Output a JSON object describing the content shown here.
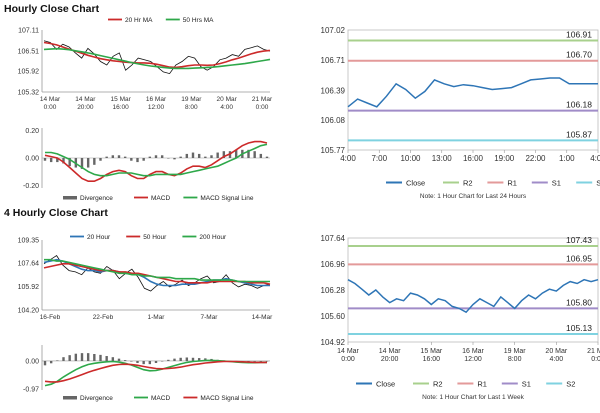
{
  "section_titles": {
    "hourly": "Hourly Close Chart",
    "four_hourly": "4 Hourly Close Chart"
  },
  "chart_data": [
    {
      "id": "hourly_price",
      "type": "line",
      "legend": [
        "20 Hr MA",
        "50 Hrs MA"
      ],
      "y_ticks": [
        "107.11",
        "106.51",
        "105.92",
        "105.32"
      ],
      "y_tick_values": [
        107.11,
        106.51,
        105.92,
        105.32
      ],
      "ylim": [
        105.32,
        107.11
      ],
      "x_ticks": [
        [
          "14 Mar",
          "0:00"
        ],
        [
          "14 Mar",
          "20:00"
        ],
        [
          "15 Mar",
          "16:00"
        ],
        [
          "16 Mar",
          "12:00"
        ],
        [
          "19 Mar",
          "8:00"
        ],
        [
          "20 Mar",
          "4:00"
        ],
        [
          "21 Mar",
          "0:00"
        ]
      ],
      "series": [
        {
          "name": "Close",
          "color": "#111111",
          "values": [
            106.8,
            106.75,
            106.55,
            106.7,
            106.62,
            106.45,
            106.3,
            106.58,
            106.42,
            106.2,
            106.1,
            106.35,
            106.45,
            105.95,
            106.1,
            106.3,
            106.25,
            106.2,
            106.05,
            105.9,
            105.85,
            106.1,
            106.2,
            106.35,
            106.3,
            106.05,
            105.95,
            106.05,
            106.25,
            106.3,
            106.4,
            106.35,
            106.55,
            106.6,
            106.65,
            106.55,
            106.5
          ]
        },
        {
          "name": "20 Hr MA",
          "color": "#cc2a2a",
          "values": [
            106.75,
            106.72,
            106.68,
            106.62,
            106.56,
            106.5,
            106.44,
            106.38,
            106.33,
            106.28,
            106.25,
            106.22,
            106.2,
            106.18,
            106.17,
            106.16,
            106.16,
            106.15,
            106.12,
            106.08,
            106.04,
            106.03,
            106.05,
            106.08,
            106.1,
            106.1,
            106.09,
            106.1,
            106.14,
            106.19,
            106.25,
            106.3,
            106.36,
            106.42,
            106.47,
            106.5,
            106.52
          ]
        },
        {
          "name": "50 Hrs MA",
          "color": "#2ea84a",
          "values": [
            106.55,
            106.56,
            106.57,
            106.56,
            106.54,
            106.51,
            106.48,
            106.45,
            106.41,
            106.37,
            106.33,
            106.29,
            106.25,
            106.21,
            106.17,
            106.13,
            106.1,
            106.07,
            106.05,
            106.03,
            106.01,
            106.0,
            106.0,
            106.0,
            106.01,
            106.02,
            106.03,
            106.04,
            106.06,
            106.08,
            106.1,
            106.12,
            106.14,
            106.17,
            106.2,
            106.23,
            106.26
          ]
        }
      ]
    },
    {
      "id": "hourly_macd",
      "type": "line",
      "legend": [
        "Divergence",
        "MACD",
        "MACD Signal Line"
      ],
      "y_ticks": [
        "0.20",
        "0.00",
        "-0.20"
      ],
      "y_tick_values": [
        0.2,
        0.0,
        -0.2
      ],
      "ylim": [
        -0.22,
        0.22
      ],
      "series": [
        {
          "name": "MACD",
          "color": "#cc2a2a",
          "values": [
            0.02,
            0.01,
            0.0,
            -0.03,
            -0.07,
            -0.11,
            -0.15,
            -0.17,
            -0.17,
            -0.15,
            -0.12,
            -0.1,
            -0.09,
            -0.1,
            -0.13,
            -0.15,
            -0.15,
            -0.12,
            -0.1,
            -0.1,
            -0.12,
            -0.13,
            -0.11,
            -0.08,
            -0.06,
            -0.06,
            -0.07,
            -0.05,
            -0.02,
            0.01,
            0.03,
            0.06,
            0.09,
            0.11,
            0.12,
            0.12,
            0.11
          ]
        },
        {
          "name": "MACD Signal Line",
          "color": "#2ea84a",
          "values": [
            0.04,
            0.04,
            0.03,
            0.01,
            -0.01,
            -0.04,
            -0.07,
            -0.1,
            -0.12,
            -0.13,
            -0.13,
            -0.12,
            -0.11,
            -0.11,
            -0.11,
            -0.12,
            -0.13,
            -0.13,
            -0.12,
            -0.12,
            -0.12,
            -0.12,
            -0.12,
            -0.11,
            -0.1,
            -0.09,
            -0.08,
            -0.07,
            -0.06,
            -0.04,
            -0.02,
            0.0,
            0.03,
            0.05,
            0.07,
            0.09,
            0.1
          ]
        },
        {
          "name": "Divergence",
          "color": "#555555",
          "values": [
            -0.02,
            -0.03,
            -0.03,
            -0.04,
            -0.06,
            -0.07,
            -0.08,
            -0.07,
            -0.05,
            -0.02,
            0.01,
            0.02,
            0.02,
            0.01,
            -0.02,
            -0.03,
            -0.02,
            0.01,
            0.02,
            0.02,
            0.0,
            -0.01,
            0.01,
            0.03,
            0.04,
            0.03,
            0.01,
            0.02,
            0.04,
            0.05,
            0.05,
            0.06,
            0.06,
            0.06,
            0.05,
            0.03,
            0.01
          ]
        }
      ]
    },
    {
      "id": "hourly_24h",
      "type": "line",
      "y_ticks": [
        "107.02",
        "106.71",
        "106.39",
        "106.08",
        "105.77"
      ],
      "y_tick_values": [
        107.02,
        106.71,
        106.39,
        106.08,
        105.77
      ],
      "ylim": [
        105.77,
        107.02
      ],
      "x_ticks": [
        "4:00",
        "7:00",
        "10:00",
        "13:00",
        "16:00",
        "19:00",
        "22:00",
        "1:00",
        "4:00"
      ],
      "legend": [
        "Close",
        "R2",
        "R1",
        "S1",
        "S2"
      ],
      "levels": [
        {
          "name": "R2",
          "value": 106.91,
          "label": "106.91",
          "color": "#a8d08d"
        },
        {
          "name": "R1",
          "value": 106.7,
          "label": "106.70",
          "color": "#e39a9a"
        },
        {
          "name": "S1",
          "value": 106.18,
          "label": "106.18",
          "color": "#a08cc8"
        },
        {
          "name": "S2",
          "value": 105.87,
          "label": "105.87",
          "color": "#7fd2e0"
        }
      ],
      "series": [
        {
          "name": "Close",
          "color": "#2e75b6",
          "values": [
            106.22,
            106.3,
            106.26,
            106.22,
            106.33,
            106.46,
            106.4,
            106.31,
            106.38,
            106.5,
            106.46,
            106.43,
            106.45,
            106.44,
            106.42,
            106.4,
            106.41,
            106.42,
            106.46,
            106.5,
            106.51,
            106.52,
            106.52,
            106.46,
            106.46,
            106.46,
            106.46
          ]
        }
      ],
      "note": "Note: 1 Hour Chart for Last 24 Hours"
    },
    {
      "id": "four_hourly_price",
      "type": "line",
      "legend": [
        "20 Hour",
        "50 Hour",
        "200 Hour"
      ],
      "y_ticks": [
        "109.35",
        "107.64",
        "105.92",
        "104.20"
      ],
      "y_tick_values": [
        109.35,
        107.64,
        105.92,
        104.2
      ],
      "ylim": [
        104.2,
        109.35
      ],
      "x_ticks": [
        "16-Feb",
        "22-Feb",
        "1-Mar",
        "7-Mar",
        "14-Mar"
      ],
      "series": [
        {
          "name": "Close",
          "color": "#111111",
          "values": [
            107.6,
            107.9,
            108.2,
            107.5,
            107.1,
            107.0,
            106.8,
            107.3,
            107.0,
            106.9,
            107.4,
            107.1,
            106.5,
            106.9,
            107.2,
            106.6,
            105.8,
            105.6,
            106.0,
            106.3,
            105.9,
            106.1,
            106.4,
            106.0,
            106.2,
            106.5,
            106.7,
            106.2,
            106.3,
            106.8,
            106.2,
            105.9,
            106.1,
            106.0,
            105.8,
            106.0,
            106.1
          ]
        },
        {
          "name": "20 Hour",
          "color": "#2e75b6",
          "values": [
            107.7,
            107.8,
            107.9,
            107.8,
            107.6,
            107.4,
            107.2,
            107.1,
            107.1,
            107.0,
            107.1,
            107.1,
            107.0,
            106.9,
            106.9,
            106.8,
            106.6,
            106.3,
            106.1,
            106.0,
            106.0,
            106.0,
            106.1,
            106.1,
            106.1,
            106.2,
            106.3,
            106.4,
            106.4,
            106.5,
            106.4,
            106.3,
            106.2,
            106.1,
            106.0,
            106.0,
            106.0
          ]
        },
        {
          "name": "50 Hour",
          "color": "#cc2a2a",
          "values": [
            107.3,
            107.4,
            107.5,
            107.6,
            107.6,
            107.5,
            107.4,
            107.3,
            107.2,
            107.1,
            107.1,
            107.1,
            107.0,
            107.0,
            106.9,
            106.9,
            106.8,
            106.7,
            106.6,
            106.5,
            106.4,
            106.3,
            106.3,
            106.2,
            106.2,
            106.2,
            106.2,
            106.3,
            106.3,
            106.3,
            106.3,
            106.3,
            106.3,
            106.2,
            106.2,
            106.2,
            106.1
          ]
        },
        {
          "name": "200 Hour",
          "color": "#2ea84a",
          "values": [
            107.9,
            107.9,
            107.8,
            107.8,
            107.7,
            107.6,
            107.5,
            107.4,
            107.3,
            107.2,
            107.1,
            107.0,
            106.9,
            106.9,
            106.8,
            106.8,
            106.7,
            106.7,
            106.6,
            106.6,
            106.6,
            106.5,
            106.5,
            106.5,
            106.5,
            106.4,
            106.4,
            106.4,
            106.4,
            106.4,
            106.4,
            106.3,
            106.3,
            106.3,
            106.3,
            106.3,
            106.3
          ]
        }
      ]
    },
    {
      "id": "four_hourly_macd",
      "type": "line",
      "legend": [
        "Divergence",
        "MACD",
        "MACD Signal Line"
      ],
      "y_ticks": [
        "0.00",
        "-0.97"
      ],
      "y_tick_values": [
        0.0,
        -0.97
      ],
      "ylim": [
        -1.0,
        0.55
      ],
      "series": [
        {
          "name": "MACD",
          "color": "#2ea84a",
          "values": [
            -0.85,
            -0.8,
            -0.7,
            -0.55,
            -0.42,
            -0.3,
            -0.2,
            -0.12,
            -0.08,
            -0.05,
            -0.03,
            -0.02,
            -0.04,
            -0.08,
            -0.14,
            -0.22,
            -0.3,
            -0.34,
            -0.33,
            -0.28,
            -0.22,
            -0.16,
            -0.1,
            -0.05,
            -0.02,
            0.0,
            0.02,
            0.02,
            0.01,
            0.0,
            -0.02,
            -0.04,
            -0.05,
            -0.06,
            -0.06,
            -0.05,
            -0.05
          ]
        },
        {
          "name": "MACD Signal Line",
          "color": "#cc2a2a",
          "values": [
            -0.7,
            -0.72,
            -0.72,
            -0.68,
            -0.62,
            -0.55,
            -0.47,
            -0.39,
            -0.32,
            -0.26,
            -0.2,
            -0.15,
            -0.12,
            -0.11,
            -0.12,
            -0.15,
            -0.19,
            -0.23,
            -0.26,
            -0.27,
            -0.26,
            -0.24,
            -0.21,
            -0.17,
            -0.13,
            -0.1,
            -0.07,
            -0.05,
            -0.03,
            -0.02,
            -0.02,
            -0.02,
            -0.03,
            -0.04,
            -0.05,
            -0.05,
            -0.05
          ]
        },
        {
          "name": "Divergence",
          "color": "#555555",
          "values": [
            -0.15,
            -0.08,
            0.02,
            0.13,
            0.2,
            0.25,
            0.27,
            0.27,
            0.24,
            0.21,
            0.17,
            0.13,
            0.08,
            0.03,
            -0.02,
            -0.07,
            -0.11,
            -0.11,
            -0.07,
            -0.01,
            0.04,
            0.08,
            0.11,
            0.12,
            0.11,
            0.1,
            0.09,
            0.07,
            0.04,
            0.02,
            0.0,
            -0.02,
            -0.02,
            -0.02,
            -0.01,
            0.0,
            0.0
          ]
        }
      ]
    },
    {
      "id": "weekly_1h",
      "type": "line",
      "y_ticks": [
        "107.64",
        "106.96",
        "106.28",
        "105.60",
        "104.92"
      ],
      "y_tick_values": [
        107.64,
        106.96,
        106.28,
        105.6,
        104.92
      ],
      "ylim": [
        104.92,
        107.64
      ],
      "x_ticks": [
        [
          "14 Mar",
          "0:00"
        ],
        [
          "14 Mar",
          "20:00"
        ],
        [
          "15 Mar",
          "16:00"
        ],
        [
          "16 Mar",
          "12:00"
        ],
        [
          "19 Mar",
          "8:00"
        ],
        [
          "20 Mar",
          "4:00"
        ],
        [
          "21 Mar",
          "0:00"
        ]
      ],
      "legend": [
        "Close",
        "R2",
        "R1",
        "S1",
        "S2"
      ],
      "levels": [
        {
          "name": "R2",
          "value": 107.43,
          "label": "107.43",
          "color": "#a8d08d"
        },
        {
          "name": "R1",
          "value": 106.95,
          "label": "106.95",
          "color": "#e39a9a"
        },
        {
          "name": "S1",
          "value": 105.8,
          "label": "105.80",
          "color": "#a08cc8"
        },
        {
          "name": "S2",
          "value": 105.13,
          "label": "105.13",
          "color": "#7fd2e0"
        }
      ],
      "series": [
        {
          "name": "Close",
          "color": "#2e75b6",
          "values": [
            106.55,
            106.45,
            106.3,
            106.15,
            106.28,
            106.1,
            105.95,
            106.05,
            106.0,
            106.2,
            106.15,
            106.05,
            105.9,
            106.05,
            106.0,
            105.85,
            105.8,
            105.7,
            105.9,
            106.05,
            105.95,
            105.85,
            106.1,
            105.95,
            105.8,
            106.0,
            106.15,
            106.05,
            106.2,
            106.3,
            106.25,
            106.4,
            106.5,
            106.45,
            106.55,
            106.5,
            106.55
          ]
        }
      ],
      "note": "Note: 1 Hour Chart for Last 1 Week"
    }
  ]
}
